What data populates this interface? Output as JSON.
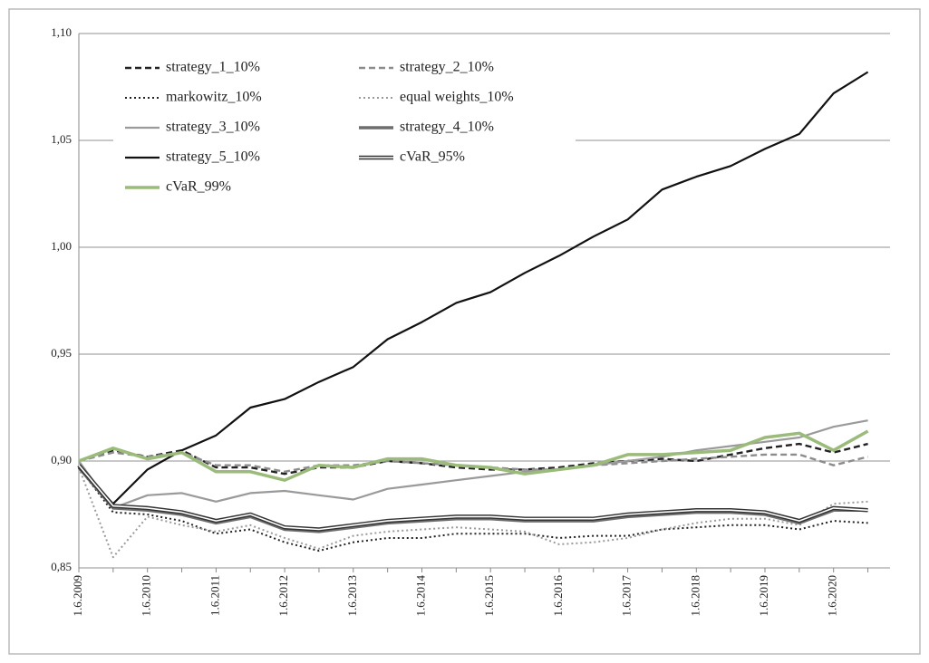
{
  "chart_data": {
    "type": "line",
    "categories": [
      "1.6.2009",
      null,
      "1.6.2010",
      null,
      "1.6.2011",
      null,
      "1.6.2012",
      null,
      "1.6.2013",
      null,
      "1.6.2014",
      null,
      "1.6.2015",
      null,
      "1.6.2016",
      null,
      "1.6.2017",
      null,
      "1.6.2018",
      null,
      "1.6.2019",
      null,
      "1.6.2020",
      null
    ],
    "ylim": [
      0.85,
      1.1
    ],
    "yticks": [
      {
        "value": 0.85,
        "label": "0,85"
      },
      {
        "value": 0.9,
        "label": "0,90"
      },
      {
        "value": 0.95,
        "label": "0,95"
      },
      {
        "value": 1.0,
        "label": "1,00"
      },
      {
        "value": 1.05,
        "label": "1,05"
      },
      {
        "value": 1.1,
        "label": "1,10"
      }
    ],
    "grid": true,
    "legend": "top-left",
    "series": [
      {
        "name": "strategy_1_10%",
        "color": "#222222",
        "style": "dashed",
        "values": [
          0.9,
          0.905,
          0.902,
          0.905,
          0.897,
          0.897,
          0.894,
          0.897,
          0.897,
          0.9,
          0.899,
          0.897,
          0.896,
          0.896,
          0.897,
          0.899,
          0.9,
          0.901,
          0.9,
          0.903,
          0.906,
          0.908,
          0.904,
          0.908
        ]
      },
      {
        "name": "strategy_2_10%",
        "color": "#8c8c8c",
        "style": "dashed",
        "values": [
          0.9,
          0.904,
          0.902,
          0.904,
          0.898,
          0.898,
          0.895,
          0.898,
          0.898,
          0.9,
          0.899,
          0.898,
          0.897,
          0.896,
          0.896,
          0.898,
          0.899,
          0.9,
          0.901,
          0.902,
          0.903,
          0.903,
          0.898,
          0.902
        ]
      },
      {
        "name": "markowitz_10%",
        "color": "#222222",
        "style": "dotted",
        "values": [
          0.897,
          0.876,
          0.875,
          0.872,
          0.866,
          0.868,
          0.862,
          0.858,
          0.862,
          0.864,
          0.864,
          0.866,
          0.866,
          0.866,
          0.864,
          0.865,
          0.865,
          0.868,
          0.869,
          0.87,
          0.87,
          0.868,
          0.872,
          0.871
        ]
      },
      {
        "name": "equal weights_10%",
        "color": "#9a9a9a",
        "style": "dotted",
        "values": [
          0.897,
          0.855,
          0.874,
          0.87,
          0.867,
          0.87,
          0.864,
          0.859,
          0.865,
          0.867,
          0.868,
          0.869,
          0.868,
          0.867,
          0.861,
          0.862,
          0.864,
          0.868,
          0.871,
          0.873,
          0.873,
          0.87,
          0.88,
          0.881
        ]
      },
      {
        "name": "strategy_3_10%",
        "color": "#9a9a9a",
        "style": "solid",
        "values": [
          0.9,
          0.878,
          0.884,
          0.885,
          0.881,
          0.885,
          0.886,
          0.884,
          0.882,
          0.887,
          0.889,
          0.891,
          0.893,
          0.895,
          0.896,
          0.898,
          0.9,
          0.902,
          0.905,
          0.907,
          0.909,
          0.911,
          0.916,
          0.919
        ]
      },
      {
        "name": "strategy_4_10%",
        "color": "#6e6e6e",
        "style": "thick",
        "values": [
          0.897,
          0.878,
          0.877,
          0.875,
          0.871,
          0.874,
          0.868,
          0.867,
          0.869,
          0.871,
          0.872,
          0.873,
          0.873,
          0.872,
          0.872,
          0.872,
          0.874,
          0.875,
          0.876,
          0.876,
          0.875,
          0.871,
          0.877,
          0.877
        ]
      },
      {
        "name": "strategy_5_10%",
        "color": "#111111",
        "style": "solid",
        "values": [
          0.897,
          0.88,
          0.896,
          0.905,
          0.912,
          0.925,
          0.929,
          0.937,
          0.944,
          0.957,
          0.965,
          0.974,
          0.979,
          0.988,
          0.996,
          1.005,
          1.013,
          1.027,
          1.033,
          1.038,
          1.046,
          1.053,
          1.072,
          1.082
        ]
      },
      {
        "name": "cVaR_95%",
        "color": "#333333",
        "style": "double",
        "values": [
          0.898,
          0.879,
          0.878,
          0.876,
          0.872,
          0.875,
          0.869,
          0.868,
          0.87,
          0.872,
          0.873,
          0.874,
          0.874,
          0.873,
          0.873,
          0.873,
          0.875,
          0.876,
          0.877,
          0.877,
          0.876,
          0.872,
          0.878,
          0.877
        ]
      },
      {
        "name": "cVaR_99%",
        "color": "#9bbb7a",
        "style": "thick",
        "values": [
          0.9,
          0.906,
          0.901,
          0.904,
          0.895,
          0.895,
          0.891,
          0.898,
          0.897,
          0.901,
          0.901,
          0.898,
          0.897,
          0.894,
          0.896,
          0.898,
          0.903,
          0.903,
          0.904,
          0.905,
          0.911,
          0.913,
          0.905,
          0.914
        ]
      }
    ]
  }
}
